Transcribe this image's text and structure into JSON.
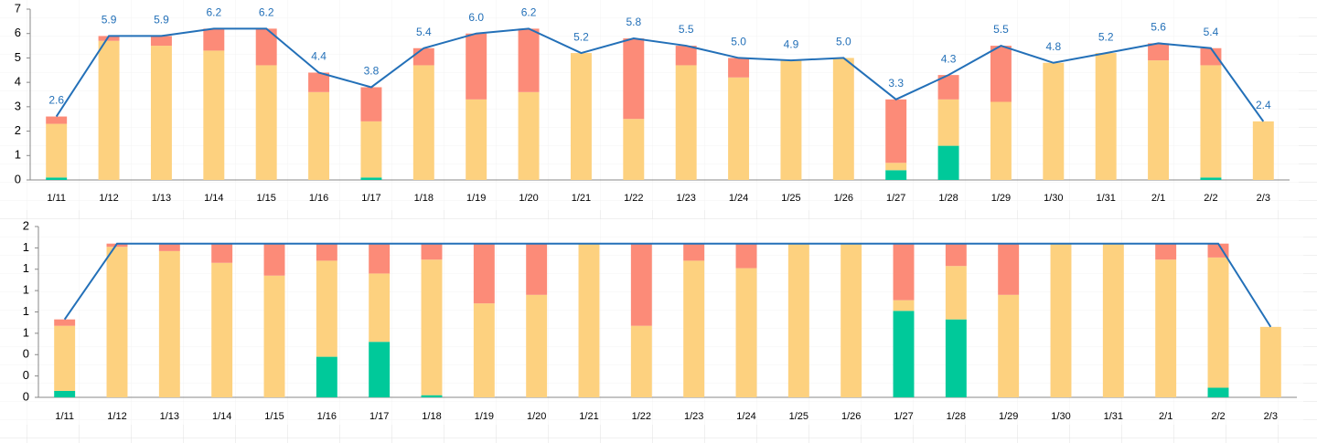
{
  "chart_data": [
    {
      "type": "bar",
      "stacked": true,
      "categories": [
        "1/11",
        "1/12",
        "1/13",
        "1/14",
        "1/15",
        "1/16",
        "1/17",
        "1/18",
        "1/19",
        "1/20",
        "1/21",
        "1/22",
        "1/23",
        "1/24",
        "1/25",
        "1/26",
        "1/27",
        "1/28",
        "1/29",
        "1/30",
        "1/31",
        "2/1",
        "2/2",
        "2/3"
      ],
      "ylim": [
        0,
        7
      ],
      "yticks": [
        0,
        1,
        2,
        3,
        4,
        5,
        6,
        7
      ],
      "series": [
        {
          "color": "#00c99a",
          "values": [
            0.1,
            0,
            0,
            0,
            0,
            0,
            0.1,
            0,
            0,
            0,
            0,
            0,
            0,
            0,
            0,
            0,
            0.4,
            1.4,
            0,
            0,
            0,
            0,
            0.1,
            0
          ]
        },
        {
          "color": "#fdd17f",
          "values": [
            2.2,
            5.7,
            5.5,
            5.3,
            4.7,
            3.6,
            2.3,
            4.7,
            3.3,
            3.6,
            5.2,
            2.5,
            4.7,
            4.2,
            4.9,
            5.0,
            0.3,
            1.9,
            3.2,
            4.8,
            5.2,
            4.9,
            4.6,
            2.4
          ]
        },
        {
          "color": "#fc8b78",
          "values": [
            0.3,
            0.2,
            0.4,
            0.9,
            1.5,
            0.8,
            1.4,
            0.7,
            2.7,
            2.6,
            0,
            3.3,
            0.8,
            0.8,
            0,
            0,
            2.6,
            1.0,
            2.3,
            0,
            0,
            0.7,
            0.7,
            0
          ]
        },
        {
          "type": "line",
          "color": "#2370b8",
          "values": [
            2.6,
            5.9,
            5.9,
            6.2,
            6.2,
            4.4,
            3.8,
            5.4,
            6,
            6.2,
            5.2,
            5.8,
            5.5,
            5,
            4.9,
            5,
            3.3,
            4.3,
            5.5,
            4.8,
            5.2,
            5.6,
            5.4,
            2.4
          ],
          "value_labels": [
            "2.6",
            "5.9",
            "5.9",
            "6.2",
            "6.2",
            "4.4",
            "3.8",
            "5.4",
            "6.0",
            "6.2",
            "5.2",
            "5.8",
            "5.5",
            "5.0",
            "4.9",
            "5.0",
            "3.3",
            "4.3",
            "5.5",
            "4.8",
            "5.2",
            "5.6",
            "5.4",
            "2.4"
          ]
        }
      ]
    },
    {
      "type": "bar",
      "stacked": true,
      "categories": [
        "1/11",
        "1/12",
        "1/13",
        "1/14",
        "1/15",
        "1/16",
        "1/17",
        "1/18",
        "1/19",
        "1/20",
        "1/21",
        "1/22",
        "1/23",
        "1/24",
        "1/25",
        "1/26",
        "1/27",
        "1/28",
        "1/29",
        "1/30",
        "1/31",
        "2/1",
        "2/2",
        "2/3"
      ],
      "ylim": [
        0,
        1.6
      ],
      "yticks": [
        {
          "value": 0,
          "label": "0"
        },
        {
          "value": 0.2,
          "label": "0"
        },
        {
          "value": 0.4,
          "label": "0"
        },
        {
          "value": 0.6,
          "label": "1"
        },
        {
          "value": 0.8,
          "label": "1"
        },
        {
          "value": 1.0,
          "label": "1"
        },
        {
          "value": 1.2,
          "label": "1"
        },
        {
          "value": 1.4,
          "label": "1"
        },
        {
          "value": 1.6,
          "label": "2"
        }
      ],
      "series": [
        {
          "color": "#00c99a",
          "values": [
            0.06,
            0,
            0,
            0,
            0,
            0.38,
            0.52,
            0.02,
            0,
            0,
            0,
            0,
            0,
            0,
            0,
            0,
            0.81,
            0.73,
            0,
            0,
            0,
            0,
            0.09,
            0
          ]
        },
        {
          "color": "#fdd17f",
          "values": [
            0.61,
            1.41,
            1.37,
            1.26,
            1.14,
            0.9,
            0.64,
            1.27,
            0.88,
            0.96,
            1.44,
            0.67,
            1.28,
            1.21,
            1.44,
            1.44,
            0.1,
            0.5,
            0.96,
            1.44,
            1.44,
            1.29,
            1.22,
            0.66
          ]
        },
        {
          "color": "#fc8b78",
          "values": [
            0.06,
            0.03,
            0.07,
            0.18,
            0.3,
            0.16,
            0.28,
            0.15,
            0.56,
            0.48,
            0,
            0.77,
            0.16,
            0.23,
            0,
            0,
            0.53,
            0.21,
            0.48,
            0,
            0,
            0.15,
            0.13,
            0
          ]
        },
        {
          "type": "line",
          "color": "#2370b8",
          "values": [
            0.73,
            1.44,
            1.44,
            1.44,
            1.44,
            1.44,
            1.44,
            1.44,
            1.44,
            1.44,
            1.44,
            1.44,
            1.44,
            1.44,
            1.44,
            1.44,
            1.44,
            1.44,
            1.44,
            1.44,
            1.44,
            1.44,
            1.44,
            0.66
          ]
        }
      ]
    }
  ]
}
